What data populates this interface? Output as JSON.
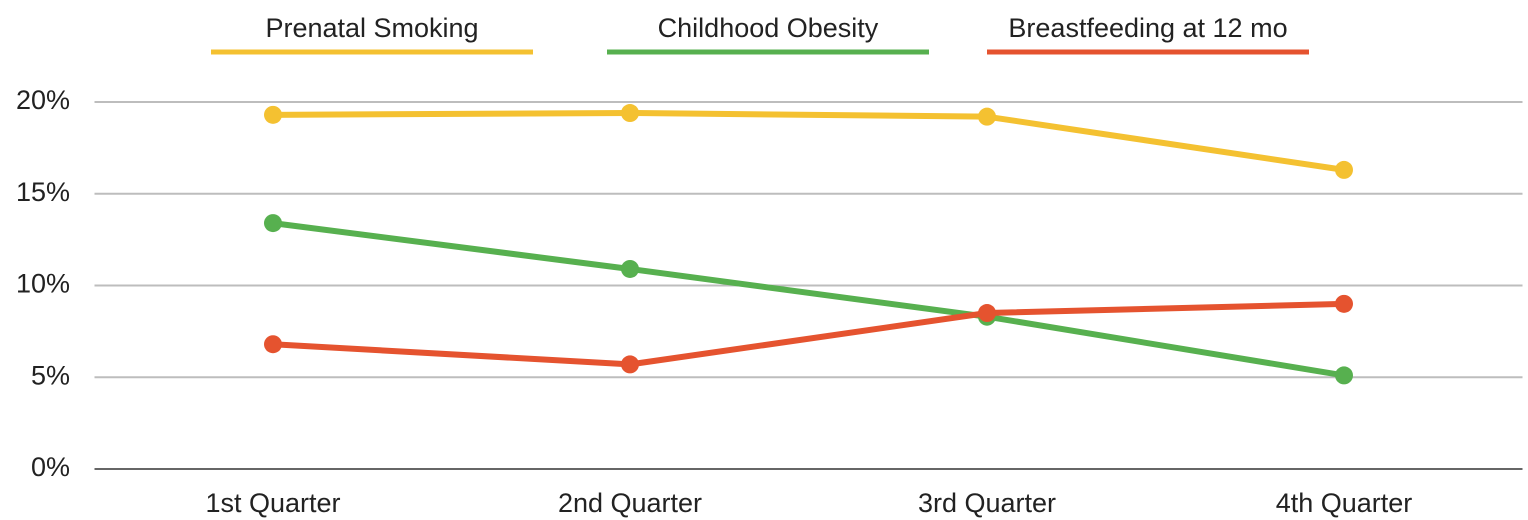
{
  "chart_data": {
    "type": "line",
    "categories": [
      "1st Quarter",
      "2nd Quarter",
      "3rd Quarter",
      "4th Quarter"
    ],
    "series": [
      {
        "name": "Prenatal Smoking",
        "color": "#f4c131",
        "values": [
          19.3,
          19.4,
          19.2,
          16.3
        ]
      },
      {
        "name": "Childhood Obesity",
        "color": "#57b04f",
        "values": [
          13.4,
          10.9,
          8.3,
          5.1
        ]
      },
      {
        "name": "Breastfeeding at 12 mo",
        "color": "#e5532f",
        "values": [
          6.8,
          5.7,
          8.5,
          9.0
        ]
      }
    ],
    "ylim": [
      0,
      20
    ],
    "yticks": [
      {
        "value": 0,
        "label": "0%"
      },
      {
        "value": 5,
        "label": "5%"
      },
      {
        "value": 10,
        "label": "10%"
      },
      {
        "value": 15,
        "label": "15%"
      },
      {
        "value": 20,
        "label": "20%"
      }
    ],
    "grid": true,
    "legend": "top"
  }
}
